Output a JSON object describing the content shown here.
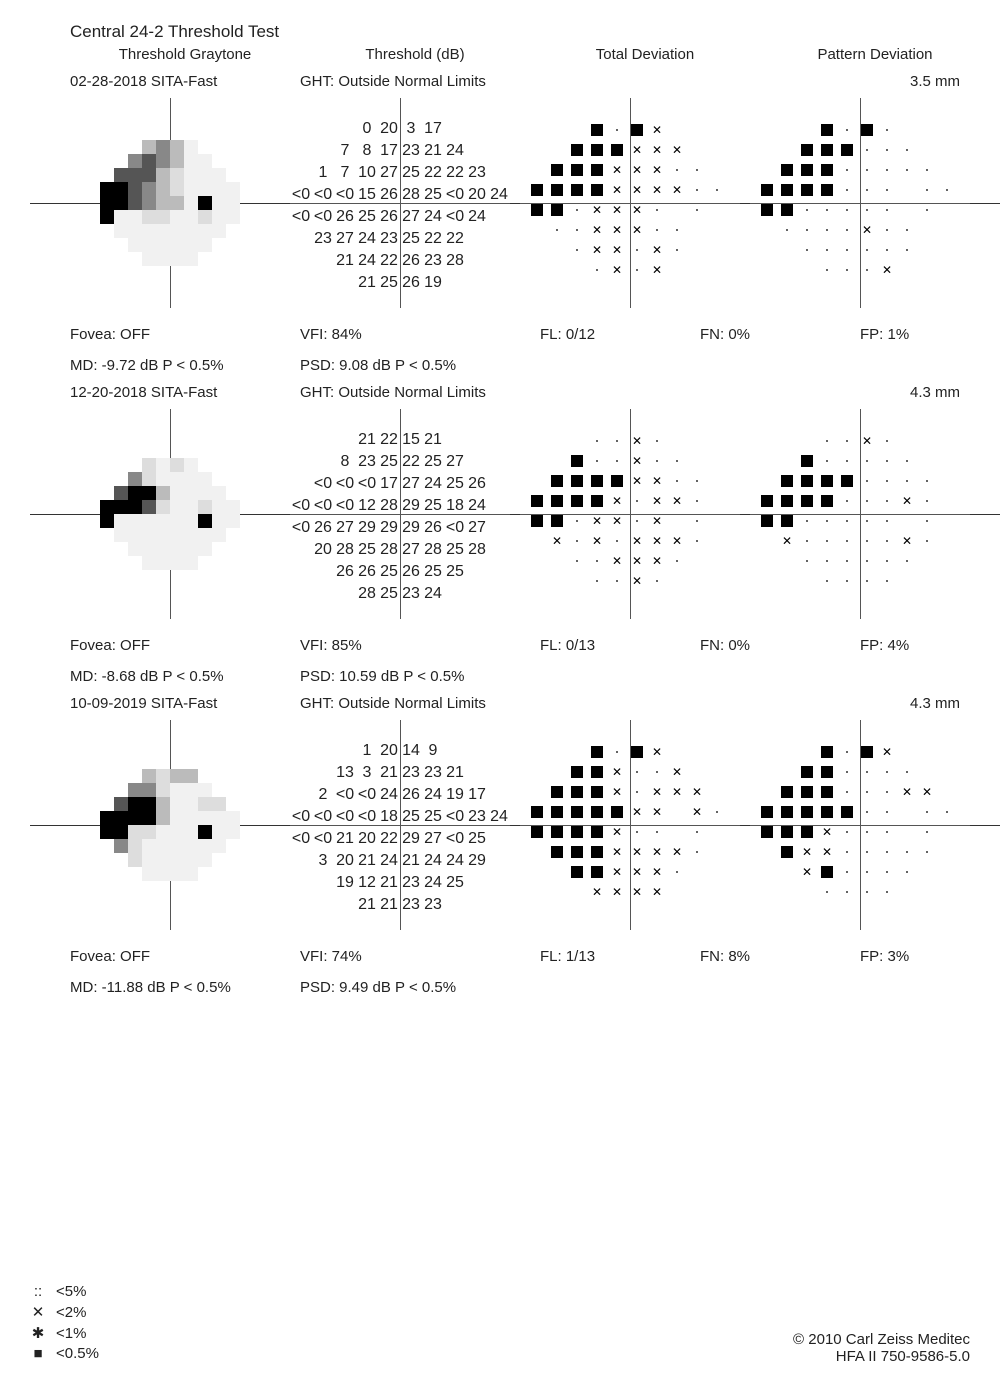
{
  "title": "Central 24-2 Threshold Test",
  "cols": {
    "a": "Threshold Graytone",
    "b": "Threshold (dB)",
    "c": "Total Deviation",
    "d": "Pattern Deviation"
  },
  "tests": [
    {
      "date": "02-28-2018 SITA-Fast",
      "ght": "GHT: Outside Normal Limits",
      "mm": "3.5 mm",
      "fovea": "Fovea: OFF",
      "vfi": "VFI: 84%",
      "fl": "FL: 0/12",
      "fn": "FN: 0%",
      "fp": "FP: 1%",
      "md": "MD: -9.72 dB P < 0.5%",
      "psd": "PSD: 9.08 dB P < 0.5%",
      "gray": [
        [
          "",
          "",
          "",
          "c3",
          "c2",
          "c3",
          "c5",
          "",
          "",
          ""
        ],
        [
          "",
          "",
          "c2",
          "c1",
          "c2",
          "c3",
          "c5",
          "c5",
          "",
          ""
        ],
        [
          "",
          "c1",
          "c1",
          "c1",
          "c3",
          "c4",
          "c5",
          "c5",
          "c5",
          ""
        ],
        [
          "c0",
          "c0",
          "c1",
          "c2",
          "c3",
          "c4",
          "c5",
          "c5",
          "c5",
          "c5"
        ],
        [
          "c0",
          "c0",
          "c1",
          "c2",
          "c3",
          "c3",
          "c5",
          "c0",
          "c5",
          "c5"
        ],
        [
          "c0",
          "c5",
          "c5",
          "c4",
          "c4",
          "c5",
          "c5",
          "c4",
          "c5",
          "c5"
        ],
        [
          "",
          "c5",
          "c5",
          "c5",
          "c5",
          "c5",
          "c5",
          "c5",
          "c5",
          ""
        ],
        [
          "",
          "",
          "c5",
          "c5",
          "c5",
          "c5",
          "c5",
          "c5",
          "",
          ""
        ],
        [
          "",
          "",
          "",
          "c5",
          "c5",
          "c5",
          "c5",
          "",
          "",
          ""
        ]
      ],
      "db": [
        [
          "",
          "",
          "",
          "0",
          "20",
          "3",
          "17",
          "",
          "",
          ""
        ],
        [
          "",
          "",
          "7",
          "8",
          "17",
          "23",
          "21",
          "24",
          "",
          ""
        ],
        [
          "",
          "1",
          "7",
          "10",
          "27",
          "25",
          "22",
          "22",
          "23",
          ""
        ],
        [
          "<0",
          "<0",
          "<0",
          "15",
          "26",
          "28",
          "25",
          "<0",
          "20",
          "24"
        ],
        [
          "<0",
          "<0",
          "26",
          "25",
          "26",
          "27",
          "24",
          "<0",
          "24",
          ""
        ],
        [
          "",
          "23",
          "27",
          "24",
          "23",
          "25",
          "22",
          "22",
          "",
          "",
          ""
        ],
        [
          "",
          "",
          "21",
          "24",
          "22",
          "26",
          "23",
          "28",
          "",
          ""
        ],
        [
          "",
          "",
          "",
          "21",
          "25",
          "26",
          "19",
          "",
          "",
          ""
        ]
      ],
      "td": [
        [
          "",
          "",
          "",
          "b",
          "d",
          "b",
          "x",
          "",
          "",
          ""
        ],
        [
          "",
          "",
          "b",
          "b",
          "b",
          "x",
          "x",
          "x",
          "",
          ""
        ],
        [
          "",
          "b",
          "b",
          "b",
          "x",
          "x",
          "x",
          "d",
          "d",
          ""
        ],
        [
          "b",
          "b",
          "b",
          "b",
          "x",
          "x",
          "x",
          "x",
          "d",
          "d"
        ],
        [
          "b",
          "b",
          "d",
          "x",
          "x",
          "x",
          "d",
          "",
          "d",
          ""
        ],
        [
          "",
          "d",
          "d",
          "x",
          "x",
          "x",
          "d",
          "d",
          "",
          ""
        ],
        [
          "",
          "",
          "d",
          "x",
          "x",
          "d",
          "x",
          "d",
          "",
          ""
        ],
        [
          "",
          "",
          "",
          "d",
          "x",
          "d",
          "x",
          "",
          "",
          ""
        ]
      ],
      "pd": [
        [
          "",
          "",
          "",
          "b",
          "d",
          "b",
          "d",
          "",
          "",
          ""
        ],
        [
          "",
          "",
          "b",
          "b",
          "b",
          "d",
          "d",
          "d",
          "",
          ""
        ],
        [
          "",
          "b",
          "b",
          "b",
          "d",
          "d",
          "d",
          "d",
          "d",
          ""
        ],
        [
          "b",
          "b",
          "b",
          "b",
          "d",
          "d",
          "d",
          "",
          "d",
          "d"
        ],
        [
          "b",
          "b",
          "d",
          "d",
          "d",
          "d",
          "d",
          "",
          "d",
          ""
        ],
        [
          "",
          "d",
          "d",
          "d",
          "d",
          "x",
          "d",
          "d",
          "",
          ""
        ],
        [
          "",
          "",
          "d",
          "d",
          "d",
          "d",
          "d",
          "d",
          "",
          ""
        ],
        [
          "",
          "",
          "",
          "d",
          "d",
          "d",
          "x",
          "",
          "",
          ""
        ]
      ]
    },
    {
      "date": "12-20-2018 SITA-Fast",
      "ght": "GHT: Outside Normal Limits",
      "mm": "4.3 mm",
      "fovea": "Fovea: OFF",
      "vfi": "VFI: 85%",
      "fl": "FL: 0/13",
      "fn": "FN: 0%",
      "fp": "FP: 4%",
      "md": "MD: -8.68 dB P < 0.5%",
      "psd": "PSD: 10.59 dB P < 0.5%",
      "gray": [
        [
          "",
          "",
          "",
          "c4",
          "c5",
          "c4",
          "c5",
          "",
          "",
          ""
        ],
        [
          "",
          "",
          "c2",
          "c4",
          "c5",
          "c5",
          "c5",
          "c5",
          "",
          ""
        ],
        [
          "",
          "c1",
          "c0",
          "c0",
          "c3",
          "c5",
          "c5",
          "c5",
          "c5",
          ""
        ],
        [
          "c0",
          "c0",
          "c0",
          "c1",
          "c4",
          "c5",
          "c5",
          "c4",
          "c5",
          "c5"
        ],
        [
          "c0",
          "c5",
          "c5",
          "c5",
          "c5",
          "c5",
          "c5",
          "c0",
          "c5",
          "c5"
        ],
        [
          "",
          "c5",
          "c5",
          "c5",
          "c5",
          "c5",
          "c5",
          "c5",
          "c5",
          ""
        ],
        [
          "",
          "",
          "c5",
          "c5",
          "c5",
          "c5",
          "c5",
          "c5",
          "",
          ""
        ],
        [
          "",
          "",
          "",
          "c5",
          "c5",
          "c5",
          "c5",
          "",
          "",
          ""
        ]
      ],
      "db": [
        [
          "",
          "",
          "",
          "21",
          "22",
          "15",
          "21",
          "",
          "",
          ""
        ],
        [
          "",
          "",
          "8",
          "23",
          "25",
          "22",
          "25",
          "27",
          "",
          ""
        ],
        [
          "",
          "<0",
          "<0",
          "<0",
          "17",
          "27",
          "24",
          "25",
          "26",
          ""
        ],
        [
          "<0",
          "<0",
          "<0",
          "12",
          "28",
          "29",
          "25",
          "18",
          "24",
          ""
        ],
        [
          "<0",
          "26",
          "27",
          "29",
          "29",
          "29",
          "26",
          "<0",
          "27",
          ""
        ],
        [
          "",
          "20",
          "28",
          "25",
          "28",
          "27",
          "28",
          "25",
          "28",
          ""
        ],
        [
          "",
          "",
          "26",
          "26",
          "25",
          "26",
          "25",
          "25",
          "",
          ""
        ],
        [
          "",
          "",
          "",
          "28",
          "25",
          "23",
          "24",
          "",
          "",
          ""
        ]
      ],
      "td": [
        [
          "",
          "",
          "",
          "d",
          "d",
          "x",
          "d",
          "",
          "",
          ""
        ],
        [
          "",
          "",
          "b",
          "d",
          "d",
          "x",
          "d",
          "d",
          "",
          ""
        ],
        [
          "",
          "b",
          "b",
          "b",
          "b",
          "x",
          "x",
          "d",
          "d",
          ""
        ],
        [
          "b",
          "b",
          "b",
          "b",
          "x",
          "d",
          "x",
          "x",
          "d",
          ""
        ],
        [
          "b",
          "b",
          "d",
          "x",
          "x",
          "d",
          "x",
          "",
          "d",
          ""
        ],
        [
          "",
          "x",
          "d",
          "x",
          "d",
          "x",
          "x",
          "x",
          "d",
          ""
        ],
        [
          "",
          "",
          "d",
          "d",
          "x",
          "x",
          "x",
          "d",
          "",
          ""
        ],
        [
          "",
          "",
          "",
          "d",
          "d",
          "x",
          "d",
          "",
          "",
          ""
        ]
      ],
      "pd": [
        [
          "",
          "",
          "",
          "d",
          "d",
          "x",
          "d",
          "",
          "",
          ""
        ],
        [
          "",
          "",
          "b",
          "d",
          "d",
          "d",
          "d",
          "d",
          "",
          ""
        ],
        [
          "",
          "b",
          "b",
          "b",
          "b",
          "d",
          "d",
          "d",
          "d",
          ""
        ],
        [
          "b",
          "b",
          "b",
          "b",
          "d",
          "d",
          "d",
          "x",
          "d",
          ""
        ],
        [
          "b",
          "b",
          "d",
          "d",
          "d",
          "d",
          "d",
          "",
          "d",
          ""
        ],
        [
          "",
          "x",
          "d",
          "d",
          "d",
          "d",
          "d",
          "x",
          "d",
          ""
        ],
        [
          "",
          "",
          "d",
          "d",
          "d",
          "d",
          "d",
          "d",
          "",
          ""
        ],
        [
          "",
          "",
          "",
          "d",
          "d",
          "d",
          "d",
          "",
          "",
          ""
        ]
      ]
    },
    {
      "date": "10-09-2019 SITA-Fast",
      "ght": "GHT: Outside Normal Limits",
      "mm": "4.3 mm",
      "fovea": "Fovea: OFF",
      "vfi": "VFI: 74%",
      "fl": "FL: 1/13",
      "fn": "FN: 8%",
      "fp": "FP: 3%",
      "md": "MD: -11.88 dB P < 0.5%",
      "psd": "PSD: 9.49 dB P < 0.5%",
      "gray": [
        [
          "",
          "",
          "",
          "c3",
          "c4",
          "c3",
          "c3",
          "",
          "",
          ""
        ],
        [
          "",
          "",
          "c2",
          "c2",
          "c4",
          "c5",
          "c5",
          "c5",
          "",
          ""
        ],
        [
          "",
          "c1",
          "c0",
          "c0",
          "c3",
          "c5",
          "c5",
          "c4",
          "c4",
          ""
        ],
        [
          "c0",
          "c0",
          "c0",
          "c0",
          "c3",
          "c5",
          "c5",
          "c5",
          "c5",
          "c5"
        ],
        [
          "c0",
          "c0",
          "c4",
          "c4",
          "c5",
          "c5",
          "c5",
          "c0",
          "c5",
          "c5"
        ],
        [
          "",
          "c2",
          "c4",
          "c5",
          "c5",
          "c5",
          "c5",
          "c5",
          "c5",
          ""
        ],
        [
          "",
          "",
          "c4",
          "c5",
          "c5",
          "c5",
          "c5",
          "c5",
          "",
          ""
        ],
        [
          "",
          "",
          "",
          "c5",
          "c5",
          "c5",
          "c5",
          "",
          "",
          ""
        ]
      ],
      "db": [
        [
          "",
          "",
          "",
          "1",
          "20",
          "14",
          "9",
          "",
          "",
          ""
        ],
        [
          "",
          "",
          "13",
          "3",
          "21",
          "23",
          "23",
          "21",
          "",
          ""
        ],
        [
          "",
          "2",
          "<0",
          "<0",
          "24",
          "26",
          "24",
          "19",
          "17",
          ""
        ],
        [
          "<0",
          "<0",
          "<0",
          "<0",
          "18",
          "25",
          "25",
          "<0",
          "23",
          "24"
        ],
        [
          "<0",
          "<0",
          "21",
          "20",
          "22",
          "29",
          "27",
          "<0",
          "25",
          ""
        ],
        [
          "",
          "3",
          "20",
          "21",
          "24",
          "21",
          "24",
          "24",
          "29",
          ""
        ],
        [
          "",
          "",
          "19",
          "12",
          "21",
          "23",
          "24",
          "25",
          "",
          ""
        ],
        [
          "",
          "",
          "",
          "21",
          "21",
          "23",
          "23",
          "",
          "",
          ""
        ]
      ],
      "td": [
        [
          "",
          "",
          "",
          "b",
          "d",
          "b",
          "x",
          "",
          "",
          ""
        ],
        [
          "",
          "",
          "b",
          "b",
          "x",
          "d",
          "d",
          "x",
          "",
          ""
        ],
        [
          "",
          "b",
          "b",
          "b",
          "x",
          "d",
          "x",
          "x",
          "x",
          ""
        ],
        [
          "b",
          "b",
          "b",
          "b",
          "b",
          "x",
          "x",
          "",
          "x",
          "d"
        ],
        [
          "b",
          "b",
          "b",
          "b",
          "x",
          "d",
          "d",
          "",
          "d",
          ""
        ],
        [
          "",
          "b",
          "b",
          "b",
          "x",
          "x",
          "x",
          "x",
          "d",
          ""
        ],
        [
          "",
          "",
          "b",
          "b",
          "x",
          "x",
          "x",
          "d",
          "",
          ""
        ],
        [
          "",
          "",
          "",
          "x",
          "x",
          "x",
          "x",
          "",
          "",
          ""
        ]
      ],
      "pd": [
        [
          "",
          "",
          "",
          "b",
          "d",
          "b",
          "x",
          "",
          "",
          ""
        ],
        [
          "",
          "",
          "b",
          "b",
          "d",
          "d",
          "d",
          "d",
          "",
          ""
        ],
        [
          "",
          "b",
          "b",
          "b",
          "d",
          "d",
          "d",
          "x",
          "x",
          ""
        ],
        [
          "b",
          "b",
          "b",
          "b",
          "b",
          "d",
          "d",
          "",
          "d",
          "d"
        ],
        [
          "b",
          "b",
          "b",
          "x",
          "d",
          "d",
          "d",
          "",
          "d",
          ""
        ],
        [
          "",
          "b",
          "x",
          "x",
          "d",
          "d",
          "d",
          "d",
          "d",
          ""
        ],
        [
          "",
          "",
          "x",
          "b",
          "d",
          "d",
          "d",
          "d",
          "",
          ""
        ],
        [
          "",
          "",
          "",
          "d",
          "d",
          "d",
          "d",
          "",
          "",
          ""
        ]
      ]
    }
  ],
  "legend": {
    "a": ":: <5%",
    "b": "✕ <2%",
    "c": "✱ <1%",
    "d": "■ <0.5%"
  },
  "copyright": {
    "a": "© 2010 Carl Zeiss Meditec",
    "b": "HFA II 750-9586-5.0"
  }
}
